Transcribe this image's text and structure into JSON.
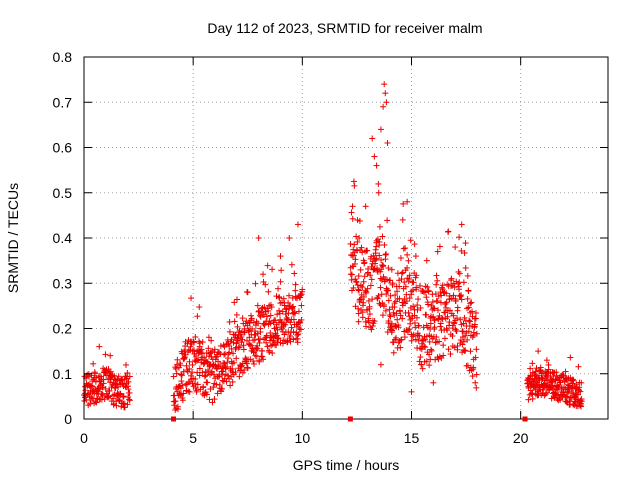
{
  "chart_data": {
    "type": "scatter",
    "title": "Day 112 of 2023, SRMTID for receiver malm",
    "xlabel": "GPS time / hours",
    "ylabel": "SRMTID / TECUs",
    "xlim": [
      0,
      24
    ],
    "ylim": [
      0,
      0.8
    ],
    "xticks": [
      0,
      5,
      10,
      15,
      20
    ],
    "yticks": [
      0,
      0.1,
      0.2,
      0.3,
      0.4,
      0.5,
      0.6,
      0.7,
      0.8
    ],
    "xtick_labels": [
      "0",
      "5",
      "10",
      "15",
      "20"
    ],
    "ytick_labels": [
      "0",
      "0.1",
      "0.2",
      "0.3",
      "0.4",
      "0.5",
      "0.6",
      "0.7",
      "0.8"
    ],
    "grid": true,
    "marker": "+",
    "color": "#ee0000",
    "gap_markers_x": [
      4.1,
      12.2,
      20.2
    ],
    "series": [
      {
        "name": "SRMTID",
        "segments": [
          {
            "start": 0.0,
            "end": 2.1,
            "baseline": [
              [
                0.0,
                0.06
              ],
              [
                0.5,
                0.07
              ],
              [
                1.0,
                0.08
              ],
              [
                1.5,
                0.06
              ],
              [
                2.1,
                0.06
              ]
            ],
            "spread": 0.035,
            "count": 180
          },
          {
            "start": 4.1,
            "end": 10.0,
            "baseline": [
              [
                4.1,
                0.05
              ],
              [
                4.6,
                0.11
              ],
              [
                5.2,
                0.12
              ],
              [
                6.0,
                0.09
              ],
              [
                6.8,
                0.14
              ],
              [
                7.5,
                0.17
              ],
              [
                8.3,
                0.19
              ],
              [
                9.2,
                0.22
              ],
              [
                10.0,
                0.23
              ]
            ],
            "spread": 0.06,
            "count": 520
          },
          {
            "start": 12.2,
            "end": 18.0,
            "baseline": [
              [
                12.2,
                0.38
              ],
              [
                12.6,
                0.3
              ],
              [
                13.2,
                0.28
              ],
              [
                13.6,
                0.33
              ],
              [
                14.1,
                0.22
              ],
              [
                14.8,
                0.27
              ],
              [
                15.5,
                0.2
              ],
              [
                16.3,
                0.22
              ],
              [
                17.2,
                0.24
              ],
              [
                18.0,
                0.15
              ]
            ],
            "spread": 0.09,
            "count": 520
          },
          {
            "start": 20.3,
            "end": 22.8,
            "baseline": [
              [
                20.3,
                0.07
              ],
              [
                21.0,
                0.08
              ],
              [
                21.8,
                0.07
              ],
              [
                22.8,
                0.05
              ]
            ],
            "spread": 0.03,
            "count": 240
          }
        ],
        "extremes": [
          [
            0.7,
            0.16
          ],
          [
            1.2,
            0.14
          ],
          [
            5.3,
            0.16
          ],
          [
            7.0,
            0.23
          ],
          [
            7.5,
            0.28
          ],
          [
            8.0,
            0.4
          ],
          [
            8.2,
            0.32
          ],
          [
            9.0,
            0.36
          ],
          [
            9.4,
            0.4
          ],
          [
            9.8,
            0.43
          ],
          [
            12.3,
            0.47
          ],
          [
            12.6,
            0.4
          ],
          [
            12.9,
            0.47
          ],
          [
            13.2,
            0.62
          ],
          [
            13.3,
            0.58
          ],
          [
            13.4,
            0.56
          ],
          [
            13.5,
            0.5
          ],
          [
            13.6,
            0.64
          ],
          [
            13.7,
            0.69
          ],
          [
            13.75,
            0.74
          ],
          [
            13.8,
            0.72
          ],
          [
            13.85,
            0.7
          ],
          [
            13.9,
            0.61
          ],
          [
            14.1,
            0.33
          ],
          [
            14.6,
            0.44
          ],
          [
            14.8,
            0.48
          ],
          [
            15.2,
            0.36
          ],
          [
            15.7,
            0.35
          ],
          [
            16.2,
            0.37
          ],
          [
            17.3,
            0.43
          ],
          [
            17.0,
            0.38
          ],
          [
            20.8,
            0.15
          ],
          [
            21.2,
            0.13
          ],
          [
            13.6,
            0.12
          ],
          [
            15.0,
            0.06
          ],
          [
            16.0,
            0.08
          ]
        ]
      }
    ]
  }
}
